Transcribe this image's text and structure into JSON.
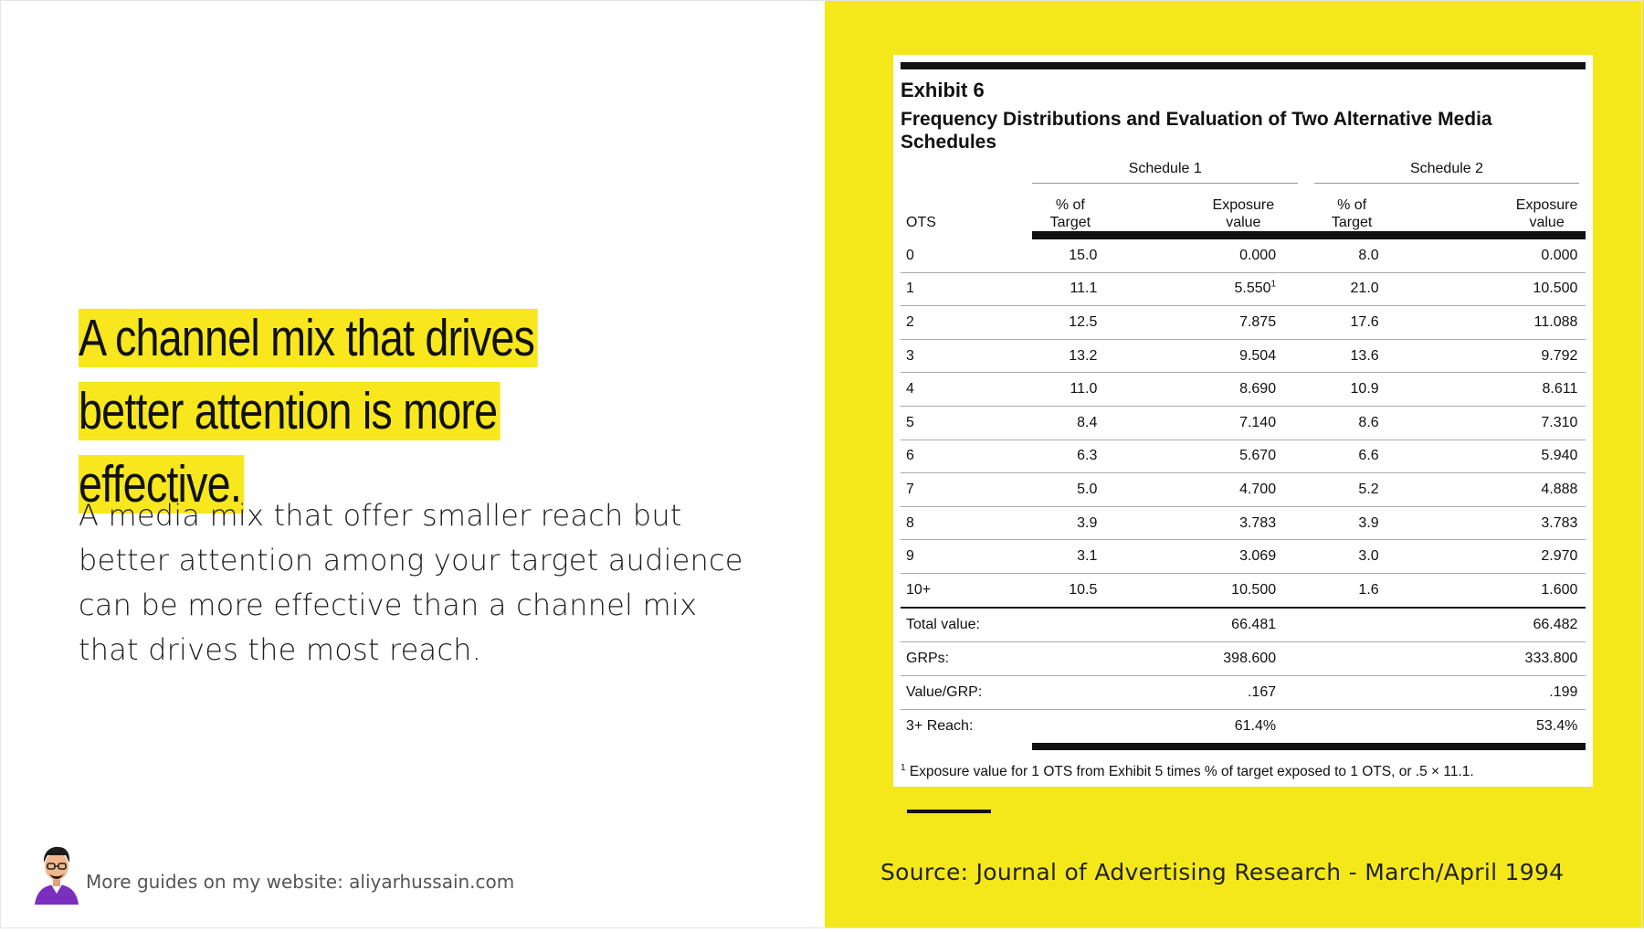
{
  "slide": {
    "headline": "A channel mix that drives better attention is more effective.",
    "body": "A media mix that offer smaller reach but better attention among your target audience can be more effective than a channel mix that drives the most reach.",
    "footer_text": "More guides on my website: aliyarhussain.com",
    "source": "Source: Journal of Advertising Research - March/April 1994",
    "colors": {
      "accent_yellow": "#f5e81a",
      "text": "#111111"
    }
  },
  "exhibit": {
    "label": "Exhibit 6",
    "title": "Frequency Distributions and Evaluation of Two Alternative Media Schedules",
    "schedule_1": "Schedule 1",
    "schedule_2": "Schedule 2",
    "col_ots": "OTS",
    "col_pct_line1": "% of",
    "col_pct_line2": "Target",
    "col_exp_line1": "Exposure",
    "col_exp_line2": "value",
    "rows": [
      {
        "ots": "0",
        "s1_pct": "15.0",
        "s1_exp": "0.000",
        "s1_note": "",
        "s2_pct": "8.0",
        "s2_exp": "0.000"
      },
      {
        "ots": "1",
        "s1_pct": "11.1",
        "s1_exp": "5.550",
        "s1_note": "1",
        "s2_pct": "21.0",
        "s2_exp": "10.500"
      },
      {
        "ots": "2",
        "s1_pct": "12.5",
        "s1_exp": "7.875",
        "s1_note": "",
        "s2_pct": "17.6",
        "s2_exp": "11.088"
      },
      {
        "ots": "3",
        "s1_pct": "13.2",
        "s1_exp": "9.504",
        "s1_note": "",
        "s2_pct": "13.6",
        "s2_exp": "9.792"
      },
      {
        "ots": "4",
        "s1_pct": "11.0",
        "s1_exp": "8.690",
        "s1_note": "",
        "s2_pct": "10.9",
        "s2_exp": "8.611"
      },
      {
        "ots": "5",
        "s1_pct": "8.4",
        "s1_exp": "7.140",
        "s1_note": "",
        "s2_pct": "8.6",
        "s2_exp": "7.310"
      },
      {
        "ots": "6",
        "s1_pct": "6.3",
        "s1_exp": "5.670",
        "s1_note": "",
        "s2_pct": "6.6",
        "s2_exp": "5.940"
      },
      {
        "ots": "7",
        "s1_pct": "5.0",
        "s1_exp": "4.700",
        "s1_note": "",
        "s2_pct": "5.2",
        "s2_exp": "4.888"
      },
      {
        "ots": "8",
        "s1_pct": "3.9",
        "s1_exp": "3.783",
        "s1_note": "",
        "s2_pct": "3.9",
        "s2_exp": "3.783"
      },
      {
        "ots": "9",
        "s1_pct": "3.1",
        "s1_exp": "3.069",
        "s1_note": "",
        "s2_pct": "3.0",
        "s2_exp": "2.970"
      },
      {
        "ots": "10+",
        "s1_pct": "10.5",
        "s1_exp": "10.500",
        "s1_note": "",
        "s2_pct": "1.6",
        "s2_exp": "1.600"
      }
    ],
    "summary": [
      {
        "label": "Total value:",
        "s1": "66.481",
        "s2": "66.482"
      },
      {
        "label": "GRPs:",
        "s1": "398.600",
        "s2": "333.800"
      },
      {
        "label": "Value/GRP:",
        "s1": ".167",
        "s2": ".199"
      },
      {
        "label": "3+ Reach:",
        "s1": "61.4%",
        "s2": "53.4%"
      }
    ],
    "footnote_mark": "1",
    "footnote": "Exposure value for 1 OTS from Exhibit 5 times % of target exposed to 1 OTS, or .5 × 11.1."
  }
}
